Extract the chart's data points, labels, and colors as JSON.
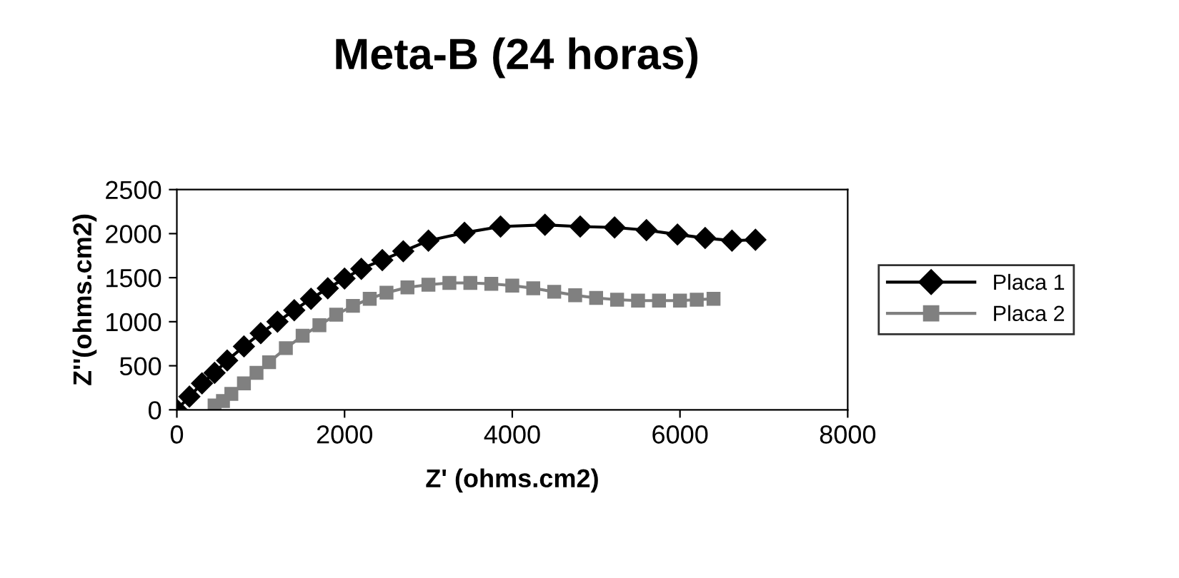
{
  "chart_data": {
    "type": "line",
    "title": "Meta-B (24 horas)",
    "xlabel": "Z' (ohms.cm2)",
    "ylabel": "Z''(ohms.cm2)",
    "xlim": [
      0,
      8000
    ],
    "xticks": [
      0,
      2000,
      4000,
      6000,
      8000
    ],
    "ylim": [
      0,
      2500
    ],
    "yticks": [
      0,
      500,
      1000,
      1500,
      2000,
      2500
    ],
    "grid": false,
    "legend": "right",
    "series": [
      {
        "name": "Placa 1",
        "color": "#000000",
        "marker": "diamond",
        "x": [
          0,
          150,
          300,
          450,
          600,
          800,
          1000,
          1200,
          1400,
          1600,
          1800,
          2000,
          2200,
          2450,
          2700,
          3000,
          3430,
          3860,
          4390,
          4810,
          5220,
          5600,
          5970,
          6300,
          6620,
          6900
        ],
        "values": [
          0,
          150,
          300,
          420,
          560,
          720,
          870,
          1000,
          1130,
          1260,
          1380,
          1490,
          1600,
          1700,
          1800,
          1920,
          2010,
          2080,
          2100,
          2080,
          2070,
          2040,
          1990,
          1950,
          1920,
          1930
        ]
      },
      {
        "name": "Placa 2",
        "color": "#808080",
        "marker": "square",
        "x": [
          450,
          550,
          650,
          800,
          950,
          1100,
          1300,
          1500,
          1700,
          1900,
          2100,
          2300,
          2500,
          2750,
          3000,
          3250,
          3500,
          3750,
          4000,
          4250,
          4500,
          4750,
          5000,
          5250,
          5500,
          5750,
          6000,
          6200,
          6400
        ],
        "values": [
          50,
          100,
          180,
          300,
          420,
          540,
          700,
          840,
          960,
          1080,
          1180,
          1260,
          1330,
          1390,
          1420,
          1440,
          1440,
          1430,
          1410,
          1380,
          1340,
          1300,
          1270,
          1250,
          1240,
          1240,
          1240,
          1250,
          1260
        ]
      }
    ]
  }
}
